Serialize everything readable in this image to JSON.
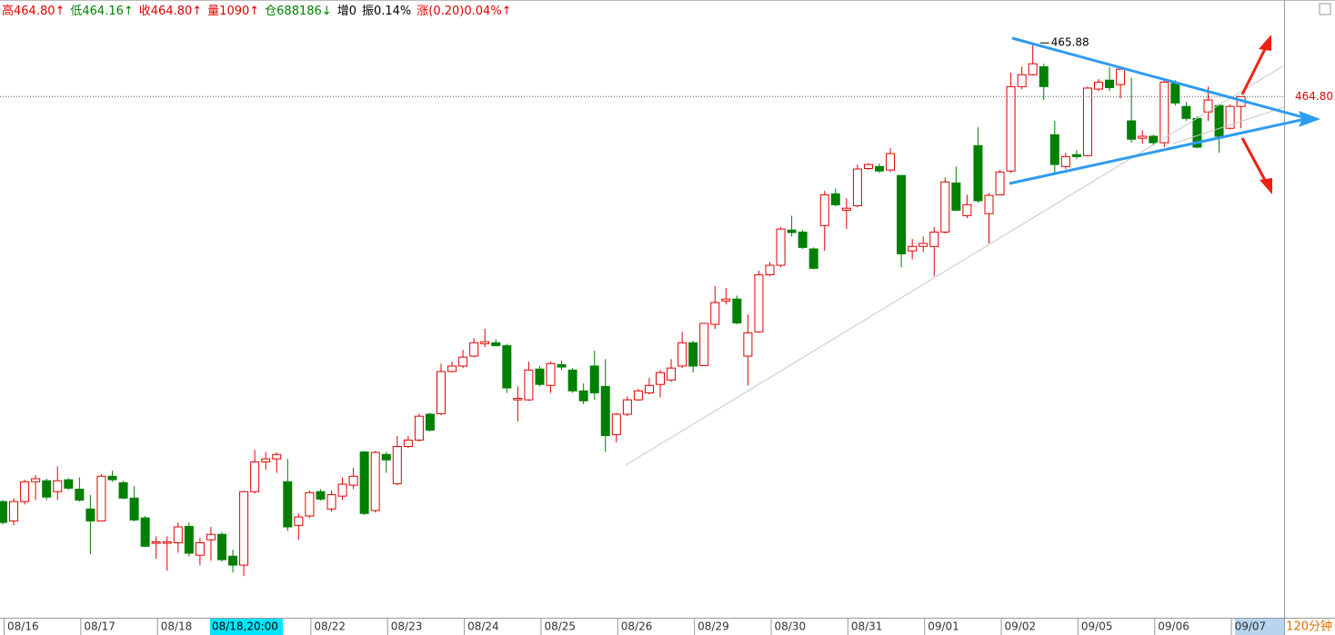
{
  "chart_data": {
    "type": "candlestick",
    "header": [
      {
        "text": "高464.80↑",
        "color": "#e00000"
      },
      {
        "text": "低464.16↑",
        "color": "#008000"
      },
      {
        "text": "收464.80↑",
        "color": "#e00000"
      },
      {
        "text": "量1090↑",
        "color": "#e00000"
      },
      {
        "text": "仓688186↓",
        "color": "#008000"
      },
      {
        "text": "增0",
        "color": "#000000"
      },
      {
        "text": "振0.14%",
        "color": "#000000"
      },
      {
        "text": "涨(0.20)0.04%↑",
        "color": "#e00000"
      }
    ],
    "period": "120分钟",
    "cursor_label": "08/18,20:00",
    "up_color": "#e00000",
    "down_color": "#008000",
    "ylim": [
      454.3,
      466.3
    ],
    "max_price": 465.88,
    "last_price": {
      "value": 464.8,
      "label": "464.80"
    },
    "categories": [
      "08/16",
      null,
      null,
      null,
      null,
      null,
      null,
      "08/17",
      null,
      null,
      null,
      null,
      null,
      null,
      "08/18",
      null,
      null,
      null,
      null,
      null,
      null,
      null,
      null,
      null,
      null,
      null,
      null,
      null,
      "08/22",
      null,
      null,
      null,
      null,
      null,
      null,
      "08/23",
      null,
      null,
      null,
      null,
      null,
      null,
      "08/24",
      null,
      null,
      null,
      null,
      null,
      null,
      "08/25",
      null,
      null,
      null,
      null,
      null,
      null,
      "08/26",
      null,
      null,
      null,
      null,
      null,
      null,
      "08/29",
      null,
      null,
      null,
      null,
      null,
      null,
      "08/30",
      null,
      null,
      null,
      null,
      null,
      null,
      "08/31",
      null,
      null,
      null,
      null,
      null,
      null,
      "09/01",
      null,
      null,
      null,
      null,
      null,
      null,
      "09/02",
      null,
      null,
      null,
      null,
      null,
      null,
      "09/05",
      null,
      null,
      null,
      null,
      null,
      null,
      "09/06",
      null,
      null,
      null,
      null,
      null,
      null,
      "09/07",
      null
    ],
    "values": [
      [
        456.64,
        456.67,
        456.18,
        456.22
      ],
      [
        456.25,
        456.71,
        456.16,
        456.64
      ],
      [
        456.64,
        457.08,
        456.58,
        457.04
      ],
      [
        457.04,
        457.17,
        456.67,
        457.1
      ],
      [
        457.06,
        457.1,
        456.67,
        456.73
      ],
      [
        456.84,
        457.35,
        456.67,
        457.06
      ],
      [
        457.08,
        457.11,
        456.88,
        456.91
      ],
      [
        456.89,
        457.13,
        456.64,
        456.67
      ],
      [
        456.49,
        456.77,
        455.58,
        456.25
      ],
      [
        456.25,
        457.19,
        456.25,
        457.15
      ],
      [
        457.15,
        457.26,
        457.04,
        457.08
      ],
      [
        457.02,
        457.06,
        456.69,
        456.71
      ],
      [
        456.71,
        456.95,
        456.24,
        456.27
      ],
      [
        456.31,
        456.35,
        455.72,
        455.74
      ],
      [
        455.8,
        455.94,
        455.49,
        455.83
      ],
      [
        455.8,
        455.94,
        455.25,
        455.83
      ],
      [
        455.81,
        456.22,
        455.61,
        456.13
      ],
      [
        456.14,
        456.22,
        455.54,
        455.6
      ],
      [
        455.56,
        455.91,
        455.36,
        455.81
      ],
      [
        455.87,
        456.13,
        455.45,
        455.98
      ],
      [
        455.98,
        456.03,
        455.43,
        455.47
      ],
      [
        455.54,
        455.67,
        455.21,
        455.36
      ],
      [
        455.36,
        456.86,
        455.14,
        456.84
      ],
      [
        456.84,
        457.68,
        456.8,
        457.44
      ],
      [
        457.44,
        457.64,
        457.28,
        457.5
      ],
      [
        457.5,
        457.63,
        457.22,
        457.59
      ],
      [
        457.04,
        457.5,
        456.05,
        456.13
      ],
      [
        456.16,
        456.4,
        455.87,
        456.33
      ],
      [
        456.35,
        456.86,
        456.31,
        456.82
      ],
      [
        456.84,
        456.89,
        456.66,
        456.69
      ],
      [
        456.49,
        456.86,
        456.44,
        456.78
      ],
      [
        456.75,
        457.13,
        456.67,
        456.99
      ],
      [
        456.97,
        457.32,
        456.89,
        457.15
      ],
      [
        457.64,
        457.66,
        456.37,
        456.4
      ],
      [
        456.46,
        457.66,
        456.42,
        457.63
      ],
      [
        457.59,
        457.64,
        457.22,
        457.48
      ],
      [
        457.0,
        457.96,
        456.97,
        457.75
      ],
      [
        457.75,
        457.96,
        457.72,
        457.88
      ],
      [
        457.88,
        458.41,
        457.85,
        458.36
      ],
      [
        458.4,
        458.43,
        458.05,
        458.08
      ],
      [
        458.41,
        459.42,
        458.38,
        459.26
      ],
      [
        459.26,
        459.46,
        459.24,
        459.37
      ],
      [
        459.37,
        459.7,
        459.33,
        459.55
      ],
      [
        459.57,
        459.93,
        459.55,
        459.84
      ],
      [
        459.82,
        460.12,
        459.75,
        459.86
      ],
      [
        459.84,
        459.91,
        459.77,
        459.78
      ],
      [
        459.78,
        459.82,
        458.83,
        458.93
      ],
      [
        458.69,
        458.96,
        458.25,
        458.72
      ],
      [
        458.69,
        459.46,
        458.67,
        459.29
      ],
      [
        459.31,
        459.37,
        458.96,
        459.0
      ],
      [
        458.98,
        459.46,
        458.83,
        459.42
      ],
      [
        459.4,
        459.48,
        459.29,
        459.35
      ],
      [
        459.29,
        459.33,
        458.83,
        458.87
      ],
      [
        458.87,
        459.02,
        458.6,
        458.67
      ],
      [
        459.37,
        459.68,
        458.69,
        458.83
      ],
      [
        458.96,
        459.51,
        457.64,
        457.97
      ],
      [
        457.99,
        458.43,
        457.83,
        458.4
      ],
      [
        458.4,
        458.76,
        458.36,
        458.69
      ],
      [
        458.69,
        458.91,
        458.67,
        458.87
      ],
      [
        458.83,
        459.13,
        458.8,
        458.98
      ],
      [
        459.0,
        459.29,
        458.74,
        459.24
      ],
      [
        459.09,
        459.51,
        459.05,
        459.33
      ],
      [
        459.37,
        460.06,
        459.33,
        459.84
      ],
      [
        459.84,
        459.88,
        459.24,
        459.37
      ],
      [
        459.38,
        460.24,
        459.37,
        460.23
      ],
      [
        460.21,
        460.98,
        460.12,
        460.65
      ],
      [
        460.68,
        460.94,
        460.61,
        460.72
      ],
      [
        460.72,
        460.79,
        460.21,
        460.24
      ],
      [
        459.57,
        460.41,
        458.98,
        460.04
      ],
      [
        460.06,
        461.29,
        460.04,
        461.21
      ],
      [
        461.21,
        461.47,
        461.18,
        461.4
      ],
      [
        461.4,
        462.17,
        461.36,
        462.13
      ],
      [
        462.11,
        462.4,
        461.98,
        462.06
      ],
      [
        462.07,
        462.11,
        461.73,
        461.76
      ],
      [
        461.73,
        461.76,
        461.32,
        461.34
      ],
      [
        462.2,
        462.9,
        461.69,
        462.82
      ],
      [
        462.84,
        462.95,
        462.59,
        462.62
      ],
      [
        462.51,
        462.75,
        462.13,
        462.55
      ],
      [
        462.6,
        463.43,
        462.57,
        463.34
      ],
      [
        463.35,
        463.46,
        463.32,
        463.43
      ],
      [
        463.39,
        463.45,
        463.26,
        463.3
      ],
      [
        463.32,
        463.76,
        463.28,
        463.65
      ],
      [
        463.21,
        463.21,
        461.36,
        461.63
      ],
      [
        461.69,
        461.93,
        461.52,
        461.78
      ],
      [
        461.78,
        461.98,
        461.67,
        461.84
      ],
      [
        461.78,
        462.17,
        461.18,
        462.07
      ],
      [
        462.07,
        463.17,
        462.04,
        463.08
      ],
      [
        463.06,
        463.39,
        462.51,
        462.51
      ],
      [
        462.4,
        462.82,
        462.35,
        462.62
      ],
      [
        463.81,
        464.18,
        462.66,
        462.7
      ],
      [
        462.44,
        462.86,
        461.84,
        462.81
      ],
      [
        462.82,
        463.32,
        462.81,
        463.28
      ],
      [
        463.3,
        465.28,
        463.26,
        465.0
      ],
      [
        465.0,
        465.4,
        464.95,
        465.24
      ],
      [
        465.24,
        465.88,
        465.22,
        465.46
      ],
      [
        465.4,
        465.46,
        464.73,
        465.0
      ],
      [
        464.03,
        464.31,
        463.26,
        463.43
      ],
      [
        463.39,
        463.67,
        463.34,
        463.59
      ],
      [
        463.63,
        463.72,
        463.54,
        463.59
      ],
      [
        463.61,
        465.0,
        463.59,
        464.97
      ],
      [
        464.95,
        465.15,
        464.91,
        465.09
      ],
      [
        465.13,
        465.39,
        464.91,
        464.98
      ],
      [
        465.04,
        465.4,
        464.76,
        465.35
      ],
      [
        464.31,
        465.18,
        463.87,
        463.94
      ],
      [
        463.96,
        464.12,
        463.85,
        464.0
      ],
      [
        464.0,
        464.03,
        463.81,
        463.87
      ],
      [
        463.87,
        465.13,
        463.78,
        465.09
      ],
      [
        465.06,
        465.13,
        464.62,
        464.67
      ],
      [
        464.6,
        464.69,
        464.31,
        464.36
      ],
      [
        464.36,
        464.4,
        463.76,
        463.78
      ],
      [
        464.49,
        465.0,
        464.31,
        464.73
      ],
      [
        464.62,
        464.65,
        463.67,
        464.0
      ],
      [
        464.16,
        464.64,
        464.14,
        464.6
      ],
      [
        464.6,
        464.8,
        464.16,
        464.8
      ]
    ]
  }
}
